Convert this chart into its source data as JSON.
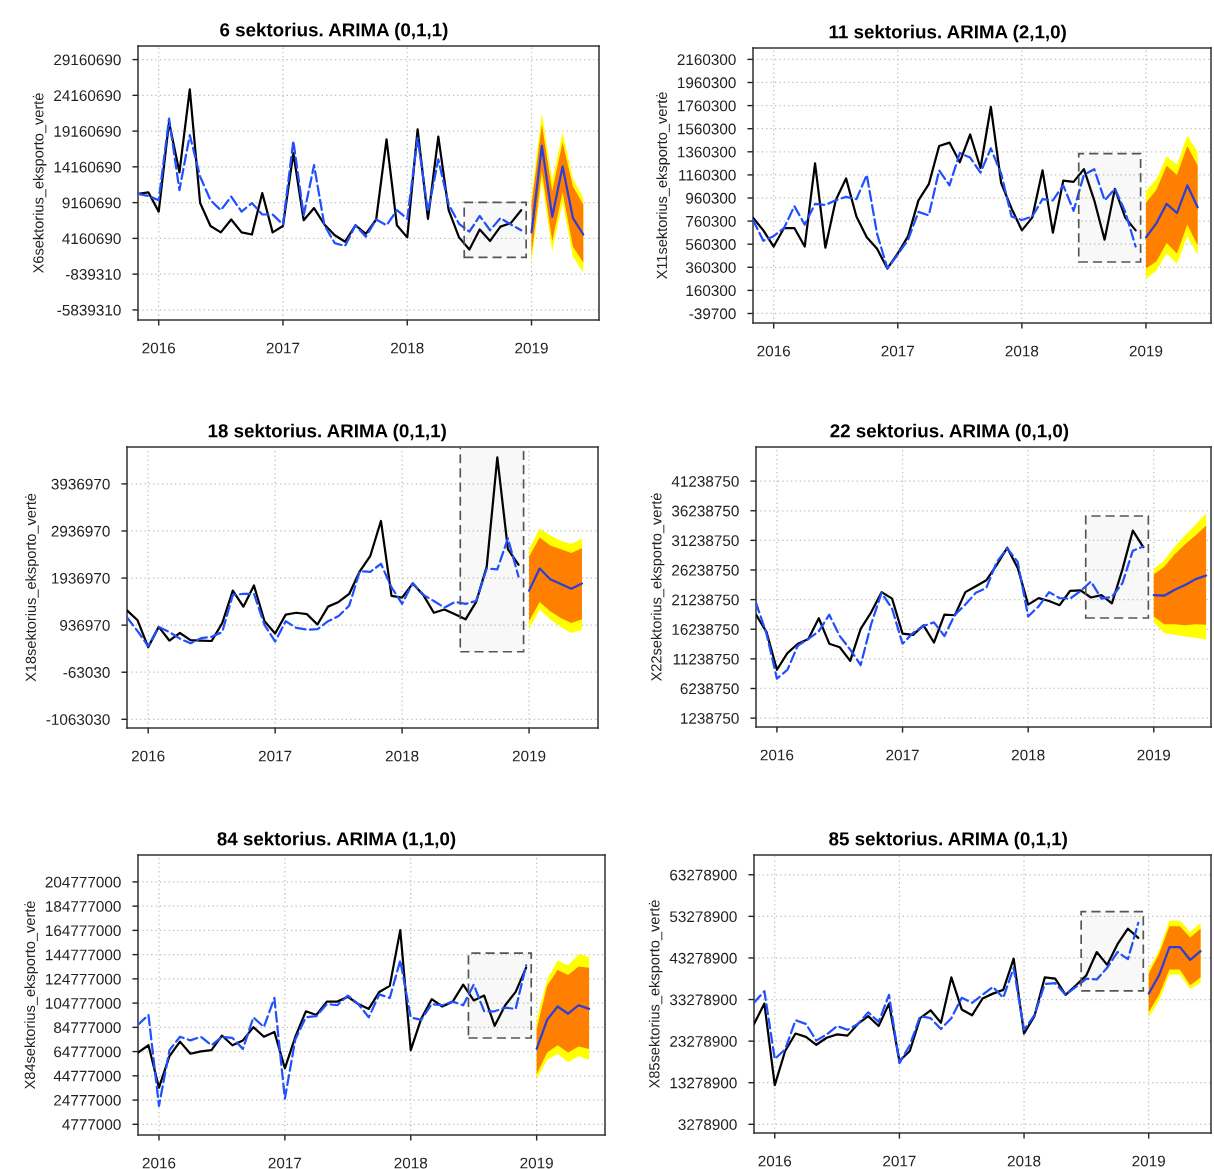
{
  "chart_data": [
    {
      "type": "line",
      "title": "6 sektorius. ARIMA (0,1,1)",
      "ylabel": "X6sektorius_eksporto_vertė",
      "grid": true,
      "xlim": [
        "2015-11",
        "2019-07-17"
      ],
      "xticks": [
        "2016",
        "2017",
        "2018",
        "2019"
      ],
      "ylim": [
        -7250000,
        31060000
      ],
      "yticks": [
        -5839310,
        -839310,
        4160690,
        9160690,
        14160690,
        19160690,
        24160690,
        29160690
      ],
      "x": [
        "2015-11",
        "2015-12",
        "2016-01",
        "2016-02",
        "2016-03",
        "2016-04",
        "2016-05",
        "2016-06",
        "2016-07",
        "2016-08",
        "2016-09",
        "2016-10",
        "2016-11",
        "2016-12",
        "2017-01",
        "2017-02",
        "2017-03",
        "2017-04",
        "2017-05",
        "2017-06",
        "2017-07",
        "2017-08",
        "2017-09",
        "2017-10",
        "2017-11",
        "2017-12",
        "2018-01",
        "2018-02",
        "2018-03",
        "2018-04",
        "2018-05",
        "2018-06",
        "2018-07",
        "2018-08",
        "2018-09",
        "2018-10",
        "2018-11",
        "2018-12"
      ],
      "series": [
        {
          "color": "#000000",
          "line_style": "solid",
          "values": [
            10400000,
            10600000,
            7900000,
            20400000,
            13400000,
            25000000,
            9100000,
            5900000,
            5000000,
            6800000,
            5000000,
            4700000,
            10500000,
            5000000,
            5900000,
            16100000,
            6700000,
            8400000,
            6100000,
            4600000,
            3700000,
            6000000,
            4800000,
            6800000,
            18000000,
            6000000,
            4300000,
            19400000,
            6900000,
            18400000,
            8100000,
            4300000,
            2600000,
            5400000,
            3800000,
            5800000,
            6300000,
            8100000
          ]
        },
        {
          "color": "#2050ff",
          "line_style": "dashed",
          "values": [
            10400000,
            10100000,
            9500000,
            20900000,
            10900000,
            18600000,
            12800000,
            9500000,
            8100000,
            10000000,
            7900000,
            9100000,
            7500000,
            7500000,
            6100000,
            17800000,
            7400000,
            14400000,
            6000000,
            3500000,
            3100000,
            6000000,
            4400000,
            6800000,
            6000000,
            8100000,
            6900000,
            18200000,
            7900000,
            15200000,
            8900000,
            6200000,
            5100000,
            7300000,
            5300000,
            7000000,
            6100000,
            5300000
          ]
        },
        {
          "color": "#ffff00",
          "x": [
            "2019-01",
            "2019-02",
            "2019-03",
            "2019-04",
            "2019-05",
            "2019-06"
          ],
          "values": [
            null,
            null,
            null,
            null,
            null,
            null
          ],
          "lower": [
            800000,
            12200000,
            2400000,
            9200000,
            1600000,
            -600000
          ],
          "upper": [
            9800000,
            21700000,
            12200000,
            19000000,
            12500000,
            9800000
          ]
        },
        {
          "color": "#ff7f00",
          "x": [
            "2019-01",
            "2019-02",
            "2019-03",
            "2019-04",
            "2019-05",
            "2019-06"
          ],
          "values": [
            null,
            null,
            null,
            null,
            null,
            null
          ],
          "lower": [
            1900000,
            13600000,
            3800000,
            10600000,
            3000000,
            800000
          ],
          "upper": [
            8900000,
            20100000,
            10800000,
            17600000,
            11400000,
            8900000
          ]
        },
        {
          "color": "#2b3fd8",
          "line_style": "solid",
          "x": [
            "2019-01",
            "2019-02",
            "2019-03",
            "2019-04",
            "2019-05",
            "2019-06"
          ],
          "values": [
            5000000,
            17100000,
            7200000,
            14200000,
            7000000,
            4700000
          ]
        }
      ],
      "bands": [
        {
          "axis": "x",
          "from": "2018-06-16",
          "to": "2018-12-16",
          "color": "#555555"
        }
      ]
    },
    {
      "type": "line",
      "title": "11 sektorius. ARIMA (2,1,0)",
      "ylabel": "X11sektorius_eksporto_vertė",
      "grid": true,
      "xlim": [
        "2015-11",
        "2019-07-10"
      ],
      "xticks": [
        "2016",
        "2017",
        "2018",
        "2019"
      ],
      "ylim": [
        -122000,
        2259000
      ],
      "yticks": [
        -39700,
        160300,
        360300,
        560300,
        760300,
        960300,
        1160300,
        1360300,
        1560300,
        1760300,
        1960300,
        2160300
      ],
      "x": [
        "2015-11",
        "2015-12",
        "2016-01",
        "2016-02",
        "2016-03",
        "2016-04",
        "2016-05",
        "2016-06",
        "2016-07",
        "2016-08",
        "2016-09",
        "2016-10",
        "2016-11",
        "2016-12",
        "2017-01",
        "2017-02",
        "2017-03",
        "2017-04",
        "2017-05",
        "2017-06",
        "2017-07",
        "2017-08",
        "2017-09",
        "2017-10",
        "2017-11",
        "2017-12",
        "2018-01",
        "2018-02",
        "2018-03",
        "2018-04",
        "2018-05",
        "2018-06",
        "2018-07",
        "2018-08",
        "2018-09",
        "2018-10",
        "2018-11",
        "2018-12"
      ],
      "series": [
        {
          "color": "#000000",
          "line_style": "solid",
          "values": [
            790000,
            680000,
            540000,
            700000,
            700000,
            540000,
            1260000,
            530000,
            940000,
            1130000,
            800000,
            620000,
            520000,
            350000,
            480000,
            630000,
            940000,
            1080000,
            1410000,
            1440000,
            1270000,
            1510000,
            1220000,
            1750000,
            1090000,
            870000,
            680000,
            790000,
            1200000,
            660000,
            1110000,
            1100000,
            1210000,
            940000,
            600000,
            1040000,
            790000,
            680000
          ]
        },
        {
          "color": "#2050ff",
          "line_style": "dashed",
          "values": [
            770000,
            590000,
            630000,
            700000,
            890000,
            730000,
            910000,
            900000,
            940000,
            970000,
            950000,
            1160000,
            650000,
            350000,
            470000,
            600000,
            840000,
            810000,
            1200000,
            1070000,
            1350000,
            1310000,
            1180000,
            1390000,
            1170000,
            800000,
            770000,
            800000,
            950000,
            940000,
            1070000,
            850000,
            1160000,
            1210000,
            940000,
            1040000,
            840000,
            540000
          ]
        },
        {
          "color": "#ffff00",
          "x": [
            "2019-01",
            "2019-02",
            "2019-03",
            "2019-04",
            "2019-05",
            "2019-06"
          ],
          "values": [
            null,
            null,
            null,
            null,
            null,
            null
          ],
          "lower": [
            260000,
            330000,
            480000,
            390000,
            630000,
            470000
          ],
          "upper": [
            1020000,
            1120000,
            1320000,
            1250000,
            1500000,
            1360000
          ]
        },
        {
          "color": "#ff7f00",
          "x": [
            "2019-01",
            "2019-02",
            "2019-03",
            "2019-04",
            "2019-05",
            "2019-06"
          ],
          "values": [
            null,
            null,
            null,
            null,
            null,
            null
          ],
          "lower": [
            350000,
            410000,
            570000,
            480000,
            730000,
            550000
          ],
          "upper": [
            920000,
            1030000,
            1240000,
            1160000,
            1410000,
            1240000
          ]
        },
        {
          "color": "#2b3fd8",
          "line_style": "solid",
          "x": [
            "2019-01",
            "2019-02",
            "2019-03",
            "2019-04",
            "2019-05",
            "2019-06"
          ],
          "values": [
            620000,
            740000,
            910000,
            830000,
            1070000,
            880000
          ]
        }
      ],
      "bands": [
        {
          "axis": "x",
          "from": "2018-06-16",
          "to": "2018-12-16",
          "color": "#555555"
        }
      ]
    },
    {
      "type": "line",
      "title": "18 sektorius. ARIMA (0,1,1)",
      "ylabel": "X18sektorius_eksporto_vertė",
      "grid": true,
      "xlim": [
        "2015-11",
        "2019-07-17"
      ],
      "xticks": [
        "2016",
        "2017",
        "2018",
        "2019"
      ],
      "ylim": [
        -1248000,
        4721000
      ],
      "yticks": [
        -1063030,
        -63030,
        936970,
        1936970,
        2936970,
        3936970
      ],
      "x": [
        "2015-11",
        "2015-12",
        "2016-01",
        "2016-02",
        "2016-03",
        "2016-04",
        "2016-05",
        "2016-06",
        "2016-07",
        "2016-08",
        "2016-09",
        "2016-10",
        "2016-11",
        "2016-12",
        "2017-01",
        "2017-02",
        "2017-03",
        "2017-04",
        "2017-05",
        "2017-06",
        "2017-07",
        "2017-08",
        "2017-09",
        "2017-10",
        "2017-11",
        "2017-12",
        "2018-01",
        "2018-02",
        "2018-03",
        "2018-04",
        "2018-05",
        "2018-06",
        "2018-07",
        "2018-08",
        "2018-09",
        "2018-10",
        "2018-11",
        "2018-12"
      ],
      "series": [
        {
          "color": "#000000",
          "line_style": "solid",
          "values": [
            1250000,
            1040000,
            470000,
            900000,
            610000,
            770000,
            620000,
            610000,
            600000,
            980000,
            1670000,
            1330000,
            1780000,
            1020000,
            760000,
            1160000,
            1200000,
            1170000,
            950000,
            1330000,
            1430000,
            1600000,
            2080000,
            2410000,
            3150000,
            1560000,
            1520000,
            1820000,
            1580000,
            1200000,
            1270000,
            1170000,
            1060000,
            1430000,
            2180000,
            4500000,
            2550000,
            2220000
          ]
        },
        {
          "color": "#2050ff",
          "line_style": "dashed",
          "values": [
            1100000,
            810000,
            490000,
            900000,
            790000,
            650000,
            550000,
            660000,
            690000,
            790000,
            1580000,
            1600000,
            1600000,
            940000,
            590000,
            1020000,
            880000,
            840000,
            850000,
            1020000,
            1130000,
            1350000,
            2080000,
            2070000,
            2240000,
            1740000,
            1390000,
            1830000,
            1580000,
            1450000,
            1310000,
            1430000,
            1390000,
            1450000,
            2140000,
            2120000,
            2780000,
            1970000
          ]
        },
        {
          "color": "#ffff00",
          "x": [
            "2019-01",
            "2019-02",
            "2019-03",
            "2019-04",
            "2019-05",
            "2019-06"
          ],
          "values": [
            null,
            null,
            null,
            null,
            null,
            null
          ],
          "lower": [
            850000,
            1270000,
            1060000,
            900000,
            770000,
            840000
          ],
          "upper": [
            2550000,
            2990000,
            2840000,
            2730000,
            2660000,
            2780000
          ]
        },
        {
          "color": "#ff7f00",
          "x": [
            "2019-01",
            "2019-02",
            "2019-03",
            "2019-04",
            "2019-05",
            "2019-06"
          ],
          "values": [
            null,
            null,
            null,
            null,
            null,
            null
          ],
          "lower": [
            1020000,
            1430000,
            1230000,
            1090000,
            980000,
            1060000
          ],
          "upper": [
            2390000,
            2800000,
            2630000,
            2550000,
            2470000,
            2570000
          ]
        },
        {
          "color": "#2b3fd8",
          "line_style": "solid",
          "x": [
            "2019-01",
            "2019-02",
            "2019-03",
            "2019-04",
            "2019-05",
            "2019-06"
          ],
          "values": [
            1670000,
            2140000,
            1910000,
            1810000,
            1710000,
            1820000
          ]
        }
      ],
      "bands": [
        {
          "axis": "x",
          "from": "2018-06-16",
          "to": "2018-12-16",
          "color": "#555555"
        }
      ]
    },
    {
      "type": "line",
      "title": "22 sektorius. ARIMA (0,1,0)",
      "ylabel": "X22sektorius_eksporto_vertė",
      "grid": true,
      "xlim": [
        "2015-11",
        "2019-06-15"
      ],
      "xticks": [
        "2016",
        "2017",
        "2018",
        "2019"
      ],
      "ylim": [
        -260000,
        47000000
      ],
      "yticks": [
        1238750,
        6238750,
        11238750,
        16238750,
        21238750,
        26238750,
        31238750,
        36238750,
        41238750
      ],
      "x": [
        "2015-11",
        "2015-12",
        "2016-01",
        "2016-02",
        "2016-03",
        "2016-04",
        "2016-05",
        "2016-06",
        "2016-07",
        "2016-08",
        "2016-09",
        "2016-10",
        "2016-11",
        "2016-12",
        "2017-01",
        "2017-02",
        "2017-03",
        "2017-04",
        "2017-05",
        "2017-06",
        "2017-07",
        "2017-08",
        "2017-09",
        "2017-10",
        "2017-11",
        "2017-12",
        "2018-01",
        "2018-02",
        "2018-03",
        "2018-04",
        "2018-05",
        "2018-06",
        "2018-07",
        "2018-08",
        "2018-09",
        "2018-10",
        "2018-11",
        "2018-12"
      ],
      "series": [
        {
          "color": "#000000",
          "line_style": "solid",
          "values": [
            18700000,
            15800000,
            9400000,
            12200000,
            13800000,
            14600000,
            18100000,
            13800000,
            13200000,
            10900000,
            16300000,
            19100000,
            22500000,
            21400000,
            15500000,
            15300000,
            16900000,
            14000000,
            18700000,
            18600000,
            22500000,
            23500000,
            24500000,
            27100000,
            30000000,
            26600000,
            20400000,
            21500000,
            21000000,
            20300000,
            22700000,
            22800000,
            21600000,
            22000000,
            20600000,
            26300000,
            32900000,
            30100000
          ]
        },
        {
          "color": "#2050ff",
          "line_style": "dashed",
          "values": [
            20700000,
            15500000,
            7900000,
            9400000,
            13500000,
            14600000,
            15900000,
            18700000,
            15100000,
            12800000,
            10200000,
            17100000,
            22400000,
            19700000,
            13800000,
            15600000,
            16800000,
            17400000,
            15100000,
            18700000,
            20400000,
            22400000,
            23200000,
            27600000,
            29900000,
            27600000,
            18400000,
            20100000,
            22500000,
            21500000,
            21400000,
            22700000,
            24300000,
            21400000,
            21700000,
            24000000,
            29500000,
            30200000
          ]
        },
        {
          "color": "#ffff00",
          "x": [
            "2019-01",
            "2019-02",
            "2019-03",
            "2019-04",
            "2019-05",
            "2019-06"
          ],
          "values": [
            null,
            null,
            null,
            null,
            null,
            null
          ],
          "lower": [
            17400000,
            15600000,
            15300000,
            15000000,
            14800000,
            14500000
          ],
          "upper": [
            26400000,
            27900000,
            30200000,
            32100000,
            33900000,
            35800000
          ]
        },
        {
          "color": "#ff7f00",
          "x": [
            "2019-01",
            "2019-02",
            "2019-03",
            "2019-04",
            "2019-05",
            "2019-06"
          ],
          "values": [
            null,
            null,
            null,
            null,
            null,
            null
          ],
          "lower": [
            18400000,
            17100000,
            17100000,
            16900000,
            17100000,
            17000000
          ],
          "upper": [
            25500000,
            26800000,
            28900000,
            30600000,
            32100000,
            33700000
          ]
        },
        {
          "color": "#2b3fd8",
          "line_style": "solid",
          "x": [
            "2019-01",
            "2019-02",
            "2019-03",
            "2019-04",
            "2019-05",
            "2019-06"
          ],
          "values": [
            22000000,
            21900000,
            22900000,
            23700000,
            24700000,
            25300000
          ]
        }
      ],
      "bands": [
        {
          "axis": "x",
          "from": "2018-06-16",
          "to": "2018-12-16",
          "color": "#555555"
        }
      ]
    },
    {
      "type": "line",
      "title": "84 sektorius. ARIMA (1,1,0)",
      "ylabel": "X84sektorius_eksporto_vertė",
      "grid": true,
      "xlim": [
        "2015-11",
        "2019-07-17"
      ],
      "xticks": [
        "2016",
        "2017",
        "2018",
        "2019"
      ],
      "ylim": [
        -4050000,
        226970000
      ],
      "yticks": [
        4777000,
        24777000,
        44777000,
        64777000,
        84777000,
        104777000,
        124777000,
        144777000,
        164777000,
        184777000,
        204777000
      ],
      "x": [
        "2015-11",
        "2015-12",
        "2016-01",
        "2016-02",
        "2016-03",
        "2016-04",
        "2016-05",
        "2016-06",
        "2016-07",
        "2016-08",
        "2016-09",
        "2016-10",
        "2016-11",
        "2016-12",
        "2017-01",
        "2017-02",
        "2017-03",
        "2017-04",
        "2017-05",
        "2017-06",
        "2017-07",
        "2017-08",
        "2017-09",
        "2017-10",
        "2017-11",
        "2017-12",
        "2018-01",
        "2018-02",
        "2018-03",
        "2018-04",
        "2018-05",
        "2018-06",
        "2018-07",
        "2018-08",
        "2018-09",
        "2018-10",
        "2018-11",
        "2018-12"
      ],
      "series": [
        {
          "color": "#000000",
          "line_style": "solid",
          "values": [
            64000000,
            70000000,
            35000000,
            61000000,
            73000000,
            63000000,
            65000000,
            66000000,
            78000000,
            70000000,
            74000000,
            85000000,
            77000000,
            81000000,
            51000000,
            77000000,
            98000000,
            95000000,
            106000000,
            106000000,
            110000000,
            104000000,
            100000000,
            114000000,
            119000000,
            165000000,
            66000000,
            92000000,
            108000000,
            102000000,
            106000000,
            120000000,
            107000000,
            111000000,
            86000000,
            103000000,
            114000000,
            134000000
          ]
        },
        {
          "color": "#2050ff",
          "line_style": "dashed",
          "values": [
            87000000,
            95000000,
            20000000,
            66000000,
            77000000,
            74000000,
            77000000,
            70000000,
            77000000,
            76000000,
            67000000,
            93000000,
            85000000,
            109000000,
            26000000,
            75000000,
            93000000,
            94000000,
            104000000,
            103000000,
            111000000,
            104000000,
            93000000,
            112000000,
            109000000,
            140000000,
            93000000,
            91000000,
            104000000,
            103000000,
            106000000,
            103000000,
            120000000,
            98000000,
            98000000,
            101000000,
            100000000,
            136000000
          ]
        },
        {
          "color": "#ffff00",
          "x": [
            "2019-01",
            "2019-02",
            "2019-03",
            "2019-04",
            "2019-05",
            "2019-06"
          ],
          "values": [
            null,
            null,
            null,
            null,
            null,
            null
          ],
          "lower": [
            42000000,
            58000000,
            63000000,
            56000000,
            61000000,
            58000000
          ],
          "upper": [
            91000000,
            124000000,
            140000000,
            136000000,
            145000000,
            143000000
          ]
        },
        {
          "color": "#ff7f00",
          "x": [
            "2019-01",
            "2019-02",
            "2019-03",
            "2019-04",
            "2019-05",
            "2019-06"
          ],
          "values": [
            null,
            null,
            null,
            null,
            null,
            null
          ],
          "lower": [
            46000000,
            64000000,
            70000000,
            64000000,
            69000000,
            67000000
          ],
          "upper": [
            83000000,
            119000000,
            132000000,
            128000000,
            135000000,
            134000000
          ]
        },
        {
          "color": "#2b3fd8",
          "line_style": "solid",
          "x": [
            "2019-01",
            "2019-02",
            "2019-03",
            "2019-04",
            "2019-05",
            "2019-06"
          ],
          "values": [
            67000000,
            91000000,
            102000000,
            96000000,
            103000000,
            100000000
          ]
        }
      ],
      "bands": [
        {
          "axis": "x",
          "from": "2018-06-16",
          "to": "2018-12-16",
          "color": "#555555"
        }
      ]
    },
    {
      "type": "line",
      "title": "85 sektorius. ARIMA (0,1,1)",
      "ylabel": "X85sektorius_eksporto_vertė",
      "grid": true,
      "xlim": [
        "2015-11",
        "2019-07-01"
      ],
      "xticks": [
        "2016",
        "2017",
        "2018",
        "2019"
      ],
      "ylim": [
        1190000,
        68030000
      ],
      "yticks": [
        3278900,
        13278900,
        23278900,
        33278900,
        43278900,
        53278900,
        63278900
      ],
      "x": [
        "2015-11",
        "2015-12",
        "2016-01",
        "2016-02",
        "2016-03",
        "2016-04",
        "2016-05",
        "2016-06",
        "2016-07",
        "2016-08",
        "2016-09",
        "2016-10",
        "2016-11",
        "2016-12",
        "2017-01",
        "2017-02",
        "2017-03",
        "2017-04",
        "2017-05",
        "2017-06",
        "2017-07",
        "2017-08",
        "2017-09",
        "2017-10",
        "2017-11",
        "2017-12",
        "2018-01",
        "2018-02",
        "2018-03",
        "2018-04",
        "2018-05",
        "2018-06",
        "2018-07",
        "2018-08",
        "2018-09",
        "2018-10",
        "2018-11",
        "2018-12"
      ],
      "series": [
        {
          "color": "#000000",
          "line_style": "solid",
          "values": [
            27400000,
            32300000,
            12700000,
            20900000,
            25100000,
            24300000,
            22400000,
            24100000,
            24900000,
            24600000,
            27400000,
            29300000,
            26900000,
            32300000,
            18500000,
            20900000,
            28800000,
            30700000,
            27700000,
            38600000,
            30900000,
            29500000,
            33500000,
            34700000,
            35600000,
            43100000,
            25100000,
            29300000,
            38600000,
            38300000,
            34400000,
            36700000,
            39100000,
            44700000,
            41600000,
            46600000,
            50300000,
            48100000
          ]
        },
        {
          "color": "#2050ff",
          "line_style": "dashed",
          "values": [
            32500000,
            35300000,
            19000000,
            21300000,
            28300000,
            27400000,
            23400000,
            24900000,
            26900000,
            26000000,
            27400000,
            30200000,
            27900000,
            34400000,
            18000000,
            22300000,
            29300000,
            28800000,
            26200000,
            28800000,
            33700000,
            32500000,
            34400000,
            36300000,
            33700000,
            40900000,
            26000000,
            29500000,
            37000000,
            37200000,
            34400000,
            36300000,
            38300000,
            38100000,
            40900000,
            44700000,
            43000000,
            51700000
          ]
        },
        {
          "color": "#ffff00",
          "x": [
            "2019-01",
            "2019-02",
            "2019-03",
            "2019-04",
            "2019-05",
            "2019-06"
          ],
          "values": [
            null,
            null,
            null,
            null,
            null,
            null
          ],
          "lower": [
            29000000,
            33000000,
            39300000,
            39300000,
            35800000,
            37400000
          ],
          "upper": [
            40500000,
            45200000,
            52300000,
            52300000,
            49600000,
            51700000
          ]
        },
        {
          "color": "#ff7f00",
          "x": [
            "2019-01",
            "2019-02",
            "2019-03",
            "2019-04",
            "2019-05",
            "2019-06"
          ],
          "values": [
            null,
            null,
            null,
            null,
            null,
            null
          ],
          "lower": [
            30200000,
            34400000,
            40500000,
            40500000,
            36700000,
            38600000
          ],
          "upper": [
            39500000,
            44200000,
            50900000,
            50900000,
            48200000,
            50300000
          ]
        },
        {
          "color": "#2b3fd8",
          "line_style": "solid",
          "x": [
            "2019-01",
            "2019-02",
            "2019-03",
            "2019-04",
            "2019-05",
            "2019-06"
          ],
          "values": [
            34700000,
            39100000,
            45900000,
            45900000,
            42800000,
            44900000
          ]
        }
      ],
      "bands": [
        {
          "axis": "x",
          "from": "2018-06-16",
          "to": "2018-12-16",
          "color": "#555555"
        }
      ]
    }
  ]
}
